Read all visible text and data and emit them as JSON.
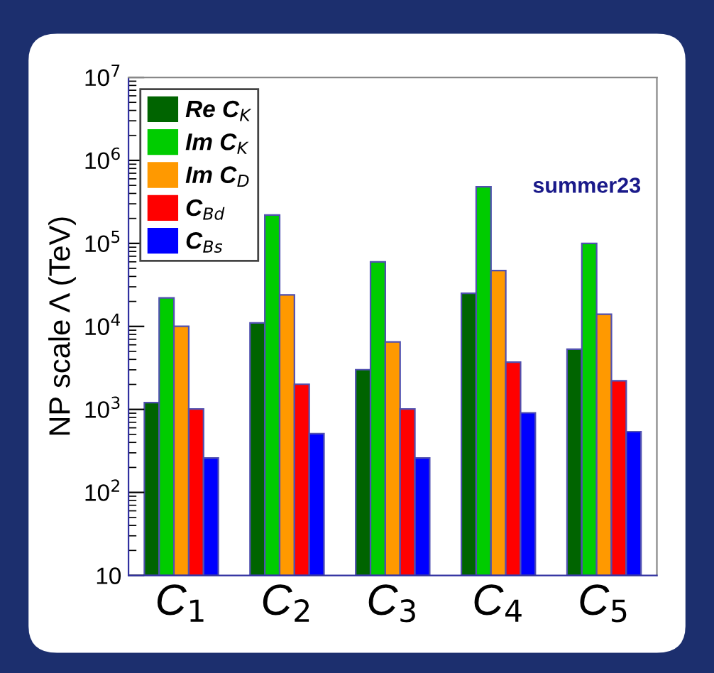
{
  "chart_data": {
    "type": "bar",
    "ylabel": "NP scale Λ (TeV)",
    "categories": [
      "C$_{1}$",
      "C$_{2}$",
      "C$_{3}$",
      "C$_{4}$",
      "C$_{5}$"
    ],
    "series": [
      {
        "name": "Re C$_{K}$",
        "color": "#006400",
        "values": [
          1200,
          11000,
          3000,
          25000,
          5300
        ]
      },
      {
        "name": "Im C$_{K}$",
        "color": "#00cc00",
        "values": [
          22000,
          220000,
          60000,
          480000,
          100000
        ]
      },
      {
        "name": "Im C$_{D}$",
        "color": "#ff9900",
        "values": [
          10000,
          24000,
          6500,
          47000,
          14000
        ]
      },
      {
        "name": "C$_{Bd}$",
        "color": "#ff0000",
        "values": [
          1000,
          2000,
          1000,
          3700,
          2200
        ]
      },
      {
        "name": "C$_{Bs}$",
        "color": "#0000ff",
        "values": [
          250,
          500,
          250,
          900,
          530
        ]
      }
    ],
    "log": "y",
    "ylim": [
      10,
      10000000
    ],
    "yticks": [
      10,
      {
        "value": 100,
        "label": "10$^{2}$"
      },
      {
        "value": 1000,
        "label": "10$^{3}$"
      },
      {
        "value": 10000,
        "label": "10$^{4}$"
      },
      {
        "value": 100000,
        "label": "10$^{5}$"
      },
      {
        "value": 1000000,
        "label": "10$^{6}$"
      },
      {
        "value": 10000000,
        "label": "10$^{7}$"
      }
    ],
    "annotations": [
      "summer23"
    ],
    "legend": "top left",
    "grid": false
  }
}
